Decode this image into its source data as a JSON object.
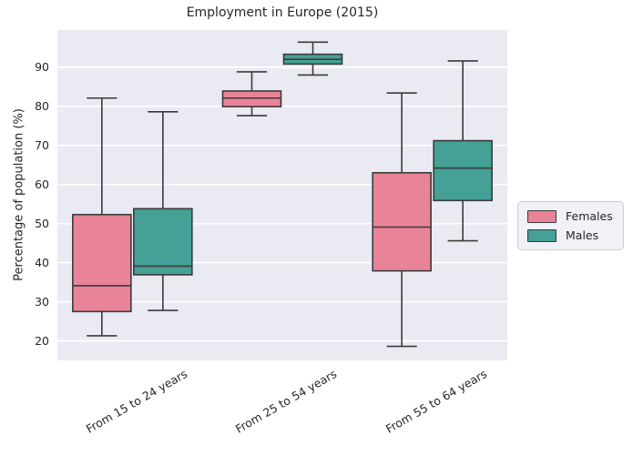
{
  "chart_data": {
    "type": "boxplot",
    "title": "Employment in Europe (2015)",
    "xlabel": "",
    "ylabel": "Percentage of population (%)",
    "categories": [
      "From 15 to 24 years",
      "From 25 to 54 years",
      "From 55 to 64 years"
    ],
    "yticks": [
      20,
      30,
      40,
      50,
      60,
      70,
      80,
      90
    ],
    "ylim": [
      15,
      99.5
    ],
    "grid": true,
    "legend_position": "center-right-outside",
    "plot_bg_color": "#eaeaf2",
    "gridline_color": "#ffffff",
    "line_color": "#3b3b3b",
    "text_color": "#262626",
    "series": [
      {
        "name": "Females",
        "color": "#e88398",
        "boxes": [
          {
            "whislo": 21.3,
            "q1": 27.5,
            "med": 34.1,
            "q3": 52.3,
            "whishi": 82.1
          },
          {
            "whislo": 77.6,
            "q1": 79.9,
            "med": 82.1,
            "q3": 83.9,
            "whishi": 88.8
          },
          {
            "whislo": 18.6,
            "q1": 37.9,
            "med": 49.1,
            "q3": 63.0,
            "whishi": 83.4
          }
        ]
      },
      {
        "name": "Males",
        "color": "#45a096",
        "boxes": [
          {
            "whislo": 27.8,
            "q1": 36.9,
            "med": 39.1,
            "q3": 53.8,
            "whishi": 78.6
          },
          {
            "whislo": 88.0,
            "q1": 90.8,
            "med": 92.0,
            "q3": 93.3,
            "whishi": 96.4
          },
          {
            "whislo": 45.6,
            "q1": 55.9,
            "med": 64.2,
            "q3": 71.2,
            "whishi": 91.6
          }
        ]
      }
    ]
  }
}
